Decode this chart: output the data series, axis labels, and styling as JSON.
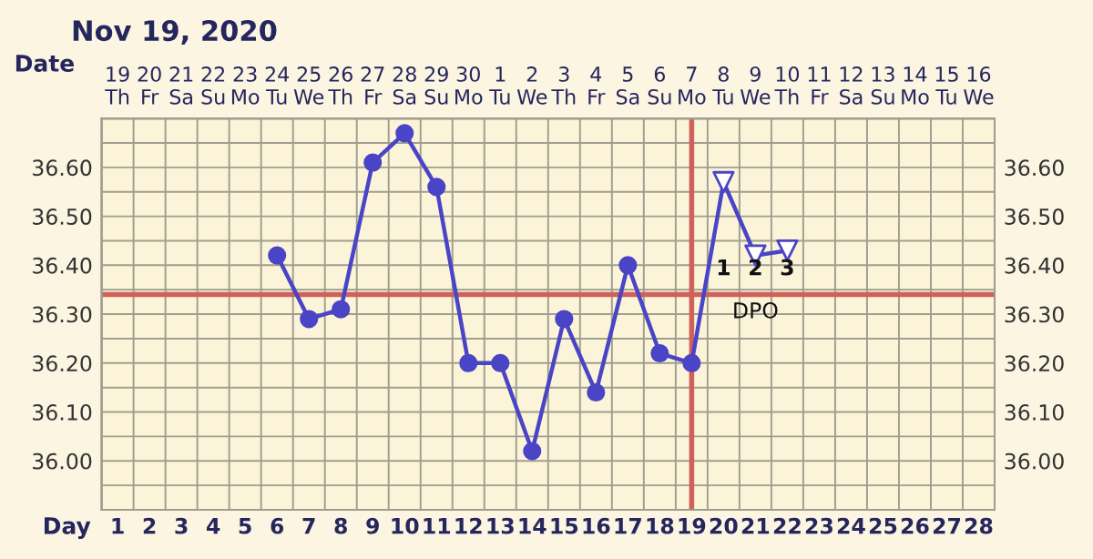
{
  "chart_data": {
    "type": "line",
    "title": "Nov 19, 2020",
    "xlabel": "Day",
    "x2label": "Date",
    "xlim": [
      0.5,
      28.5
    ],
    "xticks": [
      1,
      2,
      3,
      4,
      5,
      6,
      7,
      8,
      9,
      10,
      11,
      12,
      13,
      14,
      15,
      16,
      17,
      18,
      19,
      20,
      21,
      22,
      23,
      24,
      25,
      26,
      27,
      28
    ],
    "x2lim": [
      "2020-11-18T12:00",
      "2020-12-16T12:00"
    ],
    "x2ticks": [
      {
        "value": "2020-11-19",
        "label": "19\nTh"
      },
      {
        "value": "2020-11-20",
        "label": "20\nFr"
      },
      {
        "value": "2020-11-21",
        "label": "21\nSa"
      },
      {
        "value": "2020-11-22",
        "label": "22\nSu"
      },
      {
        "value": "2020-11-23",
        "label": "23\nMo"
      },
      {
        "value": "2020-11-24",
        "label": "24\nTu"
      },
      {
        "value": "2020-11-25",
        "label": "25\nWe"
      },
      {
        "value": "2020-11-26",
        "label": "26\nTh"
      },
      {
        "value": "2020-11-27",
        "label": "27\nFr"
      },
      {
        "value": "2020-11-28",
        "label": "28\nSa"
      },
      {
        "value": "2020-11-29",
        "label": "29\nSu"
      },
      {
        "value": "2020-11-30",
        "label": "30\nMo"
      },
      {
        "value": "2020-12-01",
        "label": "1\nTu"
      },
      {
        "value": "2020-12-02",
        "label": "2\nWe"
      },
      {
        "value": "2020-12-03",
        "label": "3\nTh"
      },
      {
        "value": "2020-12-04",
        "label": "4\nFr"
      },
      {
        "value": "2020-12-05",
        "label": "5\nSa"
      },
      {
        "value": "2020-12-06",
        "label": "6\nSu"
      },
      {
        "value": "2020-12-07",
        "label": "7\nMo"
      },
      {
        "value": "2020-12-08",
        "label": "8\nTu"
      },
      {
        "value": "2020-12-09",
        "label": "9\nWe"
      },
      {
        "value": "2020-12-10",
        "label": "10\nTh"
      },
      {
        "value": "2020-12-11",
        "label": "11\nFr"
      },
      {
        "value": "2020-12-12",
        "label": "12\nSa"
      },
      {
        "value": "2020-12-13",
        "label": "13\nSu"
      },
      {
        "value": "2020-12-14",
        "label": "14\nMo"
      },
      {
        "value": "2020-12-15",
        "label": "15\nTu"
      },
      {
        "value": "2020-12-16",
        "label": "16\nWe"
      }
    ],
    "ylim": [
      35.9,
      36.7
    ],
    "yticks": [
      {
        "value": 35.95,
        "label": null
      },
      {
        "value": 36.0,
        "label": "36.00"
      },
      {
        "value": 36.05,
        "label": null
      },
      {
        "value": 36.1,
        "label": "36.10"
      },
      {
        "value": 36.15,
        "label": null
      },
      {
        "value": 36.2,
        "label": "36.20"
      },
      {
        "value": 36.25,
        "label": null
      },
      {
        "value": 36.3,
        "label": "36.30"
      },
      {
        "value": 36.35,
        "label": null
      },
      {
        "value": 36.4,
        "label": "36.40"
      },
      {
        "value": 36.45,
        "label": null
      },
      {
        "value": 36.5,
        "label": "36.50"
      },
      {
        "value": 36.55,
        "label": null
      },
      {
        "value": 36.6,
        "label": "36.60"
      },
      {
        "value": 36.65,
        "label": null
      }
    ],
    "y2lim": [
      35.9,
      36.7
    ],
    "y2ticks": [
      {
        "value": 36.0,
        "label": "36.00"
      },
      {
        "value": 36.1,
        "label": "36.10"
      },
      {
        "value": 36.2,
        "label": "36.20"
      },
      {
        "value": 36.3,
        "label": "36.30"
      },
      {
        "value": 36.4,
        "label": "36.40"
      },
      {
        "value": 36.5,
        "label": "36.50"
      },
      {
        "value": 36.6,
        "label": "36.60"
      }
    ],
    "grid": true,
    "series": [
      {
        "marker": "none",
        "color": "#4a44c6",
        "x": [
          6,
          7,
          8,
          9,
          10,
          11,
          12,
          13,
          14,
          15,
          16,
          17,
          18,
          19,
          20,
          21,
          22
        ],
        "values": [
          36.42,
          36.29,
          36.31,
          36.61,
          36.67,
          36.56,
          36.2,
          36.2,
          36.02,
          36.29,
          36.14,
          36.4,
          36.22,
          36.2,
          36.57,
          36.42,
          36.43
        ]
      },
      {
        "type": "scatter",
        "marker": "circle",
        "color": "#4a44c6",
        "x": [
          6,
          7,
          8,
          9,
          10,
          11,
          12,
          13,
          14,
          15,
          16,
          17,
          18,
          19
        ],
        "values": [
          36.42,
          36.29,
          36.31,
          36.61,
          36.67,
          36.56,
          36.2,
          36.2,
          36.02,
          36.29,
          36.14,
          36.4,
          36.22,
          36.2
        ]
      },
      {
        "type": "scatter",
        "marker": "triangle",
        "color": "#4a44c6",
        "x": [
          20,
          21,
          22
        ],
        "values": [
          36.57,
          36.42,
          36.43
        ]
      }
    ],
    "ref_lines": [
      {
        "axis": "y",
        "value": 36.34,
        "color": "#d0605a"
      },
      {
        "axis": "x",
        "value": 19,
        "color": "#d0605a"
      }
    ],
    "annotations": [
      "1",
      "2",
      "3",
      "DPO"
    ]
  }
}
